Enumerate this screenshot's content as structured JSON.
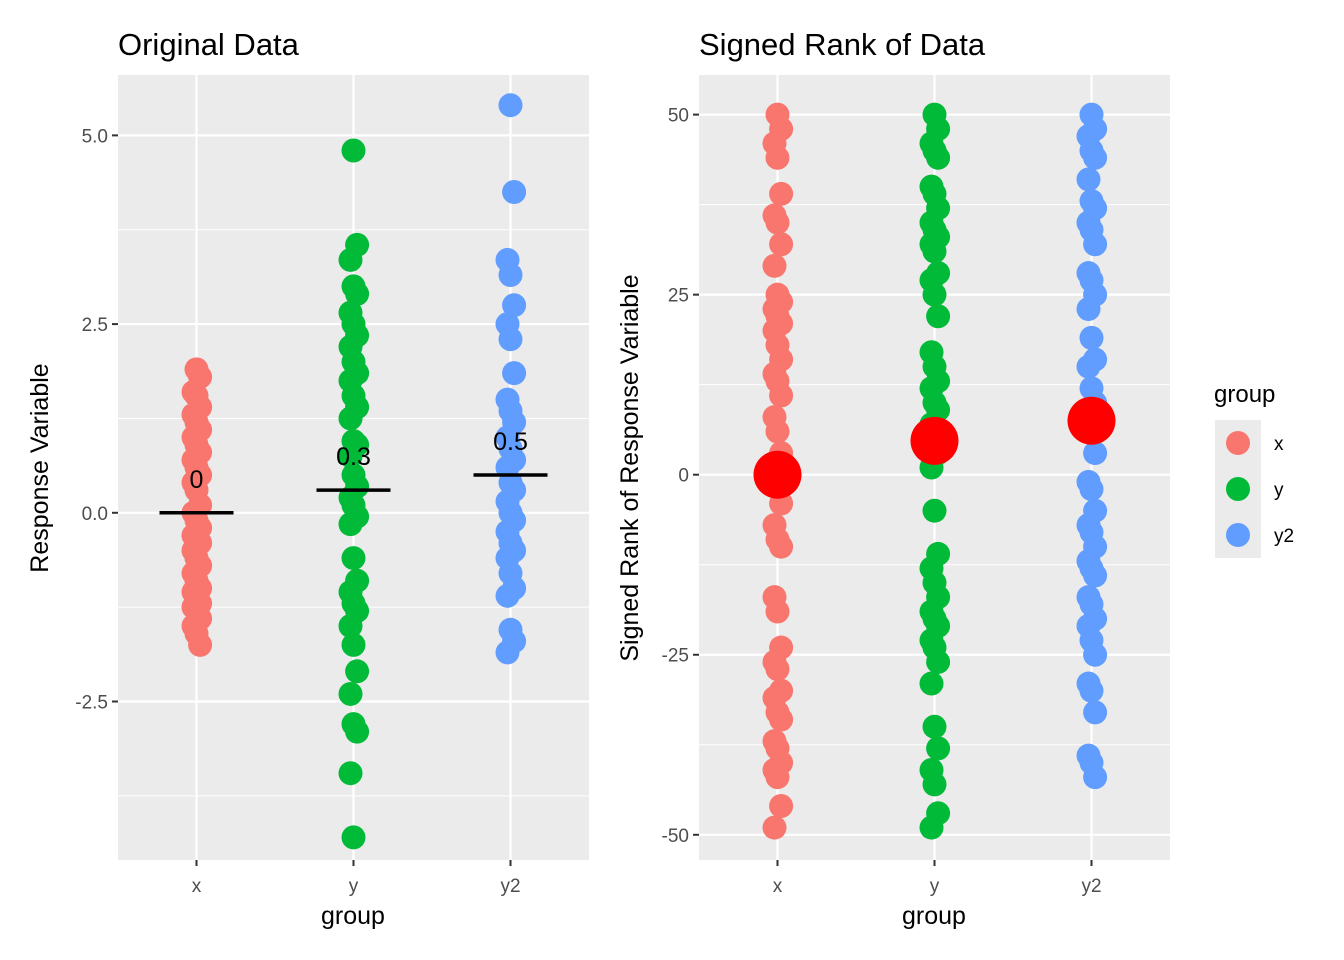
{
  "chart_data": [
    {
      "type": "scatter",
      "title": "Original Data",
      "xlabel": "group",
      "ylabel": "Response Variable",
      "categories": [
        "x",
        "y",
        "y2"
      ],
      "ylim": [
        -4.6,
        5.8
      ],
      "yticks": [
        -2.5,
        0.0,
        2.5,
        5.0
      ],
      "ytick_labels": [
        "-2.5",
        "0.0",
        "2.5",
        "5.0"
      ],
      "grid": true,
      "series": [
        {
          "category": "x",
          "color": "#F8766D",
          "values": [
            1.9,
            1.8,
            1.6,
            1.55,
            1.4,
            1.3,
            1.2,
            1.1,
            1.0,
            0.9,
            0.8,
            0.7,
            0.6,
            0.5,
            0.4,
            0.3,
            0.1,
            0.0,
            -0.1,
            -0.2,
            -0.3,
            -0.35,
            -0.4,
            -0.5,
            -0.6,
            -0.7,
            -0.8,
            -0.9,
            -1.0,
            -1.05,
            -1.1,
            -1.2,
            -1.25,
            -1.3,
            -1.4,
            -1.5,
            -1.6,
            -1.75
          ]
        },
        {
          "category": "y",
          "color": "#00BA38",
          "values": [
            4.8,
            3.55,
            3.35,
            3.0,
            2.9,
            2.65,
            2.5,
            2.35,
            2.2,
            2.0,
            1.85,
            1.75,
            1.55,
            1.4,
            1.25,
            0.95,
            0.9,
            0.75,
            0.5,
            0.35,
            0.2,
            0.1,
            -0.05,
            -0.15,
            -0.6,
            -0.9,
            -1.05,
            -1.2,
            -1.3,
            -1.5,
            -1.75,
            -2.1,
            -2.4,
            -2.8,
            -2.9,
            -3.45,
            -4.3
          ]
        },
        {
          "category": "y2",
          "color": "#619CFF",
          "values": [
            5.4,
            4.25,
            3.35,
            3.15,
            2.75,
            2.5,
            2.3,
            1.85,
            1.5,
            1.35,
            1.2,
            1.0,
            0.85,
            0.7,
            0.6,
            0.4,
            0.3,
            0.15,
            0.0,
            -0.1,
            -0.25,
            -0.4,
            -0.5,
            -0.6,
            -0.8,
            -1.0,
            -1.1,
            -1.55,
            -1.7,
            -1.85
          ]
        }
      ],
      "means": [
        {
          "category": "x",
          "value": 0.0,
          "label": "0"
        },
        {
          "category": "y",
          "value": 0.3,
          "label": "0.3"
        },
        {
          "category": "y2",
          "value": 0.5,
          "label": "0.5"
        }
      ]
    },
    {
      "type": "scatter",
      "title": "Signed Rank of Data",
      "xlabel": "group",
      "ylabel": "Signed Rank of Response Variable",
      "categories": [
        "x",
        "y",
        "y2"
      ],
      "ylim": [
        -53.5,
        55.5
      ],
      "yticks": [
        -50,
        -25,
        0,
        25,
        50
      ],
      "ytick_labels": [
        "-50",
        "-25",
        "0",
        "25",
        "50"
      ],
      "grid": true,
      "series": [
        {
          "category": "x",
          "color": "#F8766D",
          "values": [
            50,
            48,
            46,
            44,
            39,
            36,
            35,
            32,
            29,
            25,
            24,
            23,
            22,
            21,
            20,
            18,
            16,
            14,
            13,
            11,
            8,
            6,
            3,
            1,
            -1,
            -4,
            -7,
            -9,
            -10,
            -17,
            -19,
            -24,
            -26,
            -27,
            -30,
            -31,
            -33,
            -34,
            -37,
            -38,
            -40,
            -41,
            -42,
            -46,
            -49
          ]
        },
        {
          "category": "y",
          "color": "#00BA38",
          "values": [
            50,
            48,
            46,
            45,
            44,
            40,
            39,
            37,
            35,
            34,
            33,
            32,
            31,
            28,
            27,
            25,
            22,
            17,
            15,
            13,
            12,
            10,
            9,
            7,
            5,
            3,
            1,
            -5,
            -11,
            -13,
            -15,
            -17,
            -19,
            -20,
            -21,
            -23,
            -24,
            -26,
            -29,
            -35,
            -38,
            -41,
            -43,
            -47,
            -49
          ]
        },
        {
          "category": "y2",
          "color": "#619CFF",
          "values": [
            50,
            48,
            47,
            45,
            44,
            41,
            38,
            37,
            35,
            34,
            32,
            28,
            27,
            25,
            23,
            19,
            16,
            15,
            12,
            10,
            8,
            6,
            3,
            -1,
            -2,
            -5,
            -7,
            -8,
            -10,
            -12,
            -13,
            -14,
            -17,
            -18,
            -20,
            -21,
            -23,
            -25,
            -29,
            -30,
            -33,
            -39,
            -40,
            -42
          ]
        }
      ],
      "means": [
        {
          "category": "x",
          "value": 0.0,
          "color": "#FF0000"
        },
        {
          "category": "y",
          "value": 4.7,
          "color": "#FF0000"
        },
        {
          "category": "y2",
          "value": 7.5,
          "color": "#FF0000"
        }
      ],
      "legend": {
        "title": "group",
        "position": "right",
        "entries": [
          {
            "label": "x",
            "color": "#F8766D"
          },
          {
            "label": "y",
            "color": "#00BA38"
          },
          {
            "label": "y2",
            "color": "#619CFF"
          }
        ]
      }
    }
  ]
}
